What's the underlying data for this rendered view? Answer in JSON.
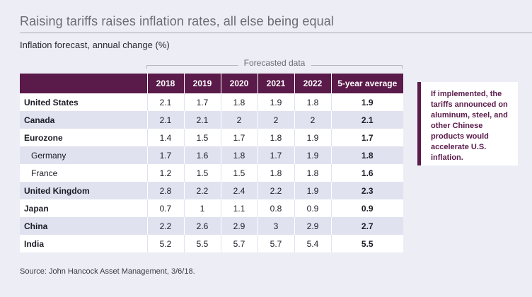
{
  "title": "Raising tariffs raises inflation rates, all else being equal",
  "subtitle": "Inflation forecast, annual change (%)",
  "forecast_label": "Forecasted data",
  "callout_text": "If implemented, the tariffs announced on aluminum, steel, and other Chinese products would accelerate U.S. inflation.",
  "source": "Source: John Hancock Asset Management, 3/6/18.",
  "colors": {
    "header_bg": "#5a1a4a",
    "alt_row": "#e0e2ef",
    "page_bg": "#edeef5"
  },
  "chart_data": {
    "type": "table",
    "title": "Raising tariffs raises inflation rates, all else being equal",
    "subtitle": "Inflation forecast, annual change (%)",
    "columns": [
      "",
      "2018",
      "2019",
      "2020",
      "2021",
      "2022",
      "5-year average"
    ],
    "rows": [
      {
        "country": "United States",
        "sub": false,
        "values": [
          "2.1",
          "1.7",
          "1.8",
          "1.9",
          "1.8"
        ],
        "avg": "1.9"
      },
      {
        "country": "Canada",
        "sub": false,
        "values": [
          "2.1",
          "2.1",
          "2",
          "2",
          "2"
        ],
        "avg": "2.1"
      },
      {
        "country": "Eurozone",
        "sub": false,
        "values": [
          "1.4",
          "1.5",
          "1.7",
          "1.8",
          "1.9"
        ],
        "avg": "1.7"
      },
      {
        "country": "Germany",
        "sub": true,
        "values": [
          "1.7",
          "1.6",
          "1.8",
          "1.7",
          "1.9"
        ],
        "avg": "1.8"
      },
      {
        "country": "France",
        "sub": true,
        "values": [
          "1.2",
          "1.5",
          "1.5",
          "1.8",
          "1.8"
        ],
        "avg": "1.6"
      },
      {
        "country": "United Kingdom",
        "sub": false,
        "values": [
          "2.8",
          "2.2",
          "2.4",
          "2.2",
          "1.9"
        ],
        "avg": "2.3"
      },
      {
        "country": "Japan",
        "sub": false,
        "values": [
          "0.7",
          "1",
          "1.1",
          "0.8",
          "0.9"
        ],
        "avg": "0.9"
      },
      {
        "country": "China",
        "sub": false,
        "values": [
          "2.2",
          "2.6",
          "2.9",
          "3",
          "2.9"
        ],
        "avg": "2.7"
      },
      {
        "country": "India",
        "sub": false,
        "values": [
          "5.2",
          "5.5",
          "5.7",
          "5.7",
          "5.4"
        ],
        "avg": "5.5"
      }
    ]
  }
}
